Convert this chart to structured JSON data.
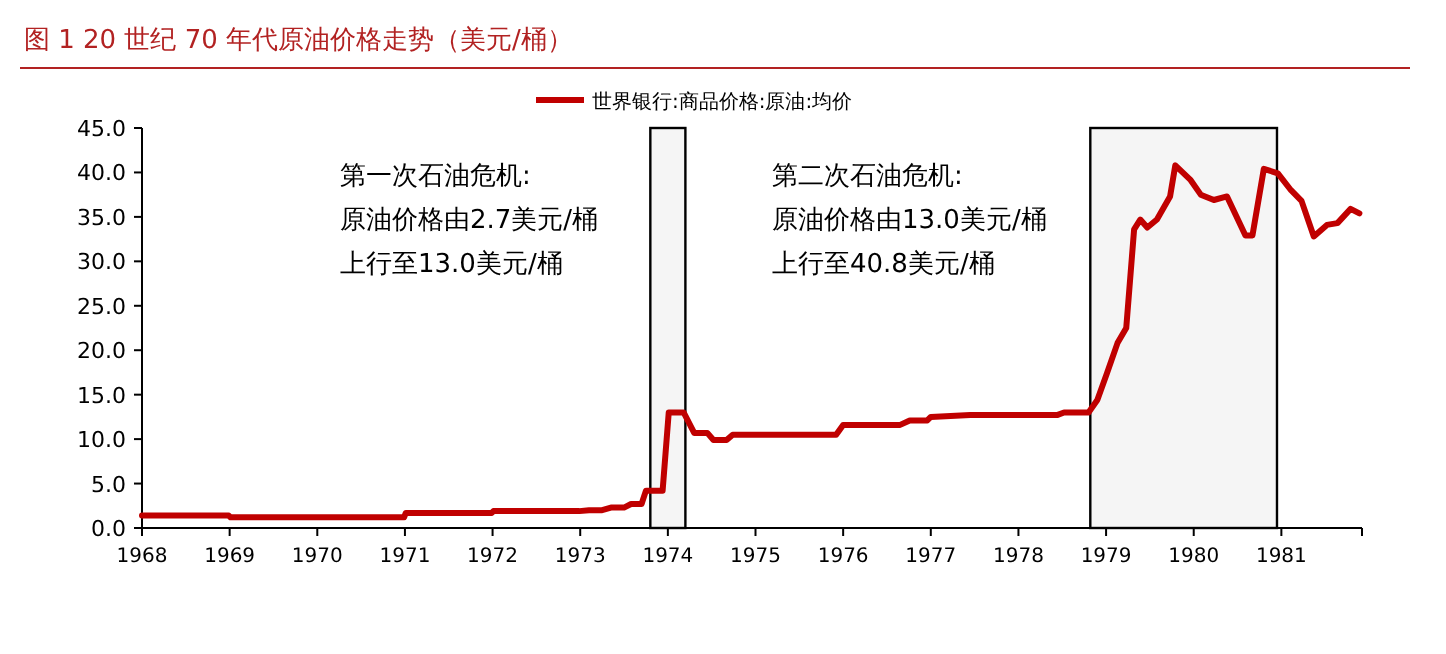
{
  "chart_data": {
    "type": "line",
    "title": "图 1 20 世纪 70 年代原油价格走势（美元/桶）",
    "series": [
      {
        "name": "世界银行:商品价格:原油:均价",
        "color": "#c00000",
        "x": [
          1968.0,
          1968.99,
          1969.01,
          1970.99,
          1971.01,
          1971.99,
          1972.01,
          1972.99,
          1973.1,
          1973.25,
          1973.35,
          1973.5,
          1973.58,
          1973.7,
          1973.75,
          1973.94,
          1974.01,
          1974.18,
          1974.3,
          1974.45,
          1974.52,
          1974.67,
          1974.74,
          1975.92,
          1976.0,
          1976.65,
          1976.76,
          1976.96,
          1977.0,
          1977.45,
          1978.44,
          1978.52,
          1978.8,
          1978.9,
          1979.01,
          1979.13,
          1979.23,
          1979.32,
          1979.39,
          1979.47,
          1979.58,
          1979.73,
          1979.79,
          1979.96,
          1980.08,
          1980.23,
          1980.38,
          1980.59,
          1980.67,
          1980.8,
          1980.96,
          1981.11,
          1981.23,
          1981.37,
          1981.52,
          1981.64,
          1981.79,
          1981.89
        ],
        "values": [
          1.4,
          1.4,
          1.2,
          1.2,
          1.7,
          1.7,
          1.9,
          1.9,
          2.0,
          2.0,
          2.3,
          2.3,
          2.7,
          2.7,
          4.2,
          4.2,
          13.0,
          13.0,
          10.7,
          10.7,
          9.9,
          9.9,
          10.5,
          10.5,
          11.6,
          11.6,
          12.1,
          12.1,
          12.5,
          12.7,
          12.7,
          13.0,
          13.0,
          14.4,
          17.4,
          20.8,
          22.5,
          33.6,
          34.7,
          33.8,
          34.7,
          37.3,
          40.8,
          39.2,
          37.5,
          36.9,
          37.3,
          32.9,
          32.9,
          40.4,
          39.9,
          38.0,
          36.8,
          32.8,
          34.1,
          34.3,
          35.9,
          35.4
        ]
      }
    ],
    "xlim": [
      1968,
      1981.92
    ],
    "xticks": [
      1968,
      1969,
      1970,
      1971,
      1972,
      1973,
      1974,
      1975,
      1976,
      1977,
      1978,
      1979,
      1980,
      1981
    ],
    "ylim": [
      0,
      45
    ],
    "yticks": [
      {
        "value": 0,
        "label": "0.0"
      },
      {
        "value": 5,
        "label": "5.0"
      },
      {
        "value": 10,
        "label": "10.0"
      },
      {
        "value": 15,
        "label": "15.0"
      },
      {
        "value": 20,
        "label": "20.0"
      },
      {
        "value": 25,
        "label": "25.0"
      },
      {
        "value": 30,
        "label": "30.0"
      },
      {
        "value": 35,
        "label": "35.0"
      },
      {
        "value": 40,
        "label": "40.0"
      },
      {
        "value": 45,
        "label": "45.0"
      }
    ],
    "bands": [
      {
        "axis": "x",
        "from": 1973.8,
        "to": 1974.2,
        "color": "#000000"
      },
      {
        "axis": "x",
        "from": 1978.82,
        "to": 1980.95,
        "color": "#000000"
      }
    ],
    "annotations": [
      "第一次石油危机:",
      "原油价格由2.7美元/桶",
      "上行至13.0美元/桶",
      "第二次石油危机:",
      "原油价格由13.0美元/桶",
      "上行至40.8美元/桶"
    ],
    "legend": "top",
    "grid": false,
    "line_style": "solid",
    "marker": "none"
  }
}
